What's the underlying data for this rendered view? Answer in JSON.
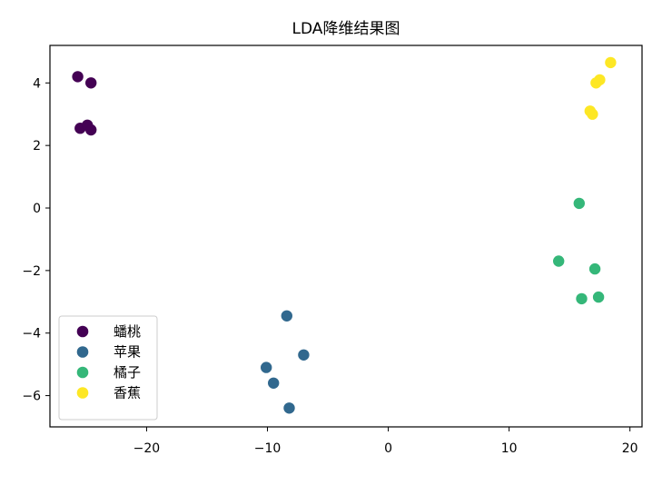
{
  "chart_data": {
    "type": "scatter",
    "title": "LDA降维结果图",
    "xlabel": "",
    "ylabel": "",
    "xlim": [
      -28,
      21
    ],
    "ylim": [
      -7,
      5.2
    ],
    "xticks": [
      -20,
      -10,
      0,
      10,
      20
    ],
    "yticks": [
      -6,
      -4,
      -2,
      0,
      2,
      4
    ],
    "grid": false,
    "legend": {
      "position": "lower-left"
    },
    "series": [
      {
        "name": "蟠桃",
        "color": "#440154",
        "points": [
          {
            "x": -25.7,
            "y": 4.2
          },
          {
            "x": -24.6,
            "y": 4.0
          },
          {
            "x": -25.5,
            "y": 2.55
          },
          {
            "x": -24.9,
            "y": 2.65
          },
          {
            "x": -24.6,
            "y": 2.5
          }
        ]
      },
      {
        "name": "苹果",
        "color": "#31688e",
        "points": [
          {
            "x": -8.4,
            "y": -3.45
          },
          {
            "x": -7.0,
            "y": -4.7
          },
          {
            "x": -10.1,
            "y": -5.1
          },
          {
            "x": -9.5,
            "y": -5.6
          },
          {
            "x": -8.2,
            "y": -6.4
          }
        ]
      },
      {
        "name": "橘子",
        "color": "#35b779",
        "points": [
          {
            "x": 15.8,
            "y": 0.15
          },
          {
            "x": 14.1,
            "y": -1.7
          },
          {
            "x": 17.1,
            "y": -1.95
          },
          {
            "x": 16.0,
            "y": -2.9
          },
          {
            "x": 17.4,
            "y": -2.85
          }
        ]
      },
      {
        "name": "香蕉",
        "color": "#fde725",
        "points": [
          {
            "x": 18.4,
            "y": 4.65
          },
          {
            "x": 17.5,
            "y": 4.1
          },
          {
            "x": 17.2,
            "y": 4.0
          },
          {
            "x": 16.7,
            "y": 3.1
          },
          {
            "x": 16.9,
            "y": 3.0
          }
        ]
      }
    ]
  }
}
